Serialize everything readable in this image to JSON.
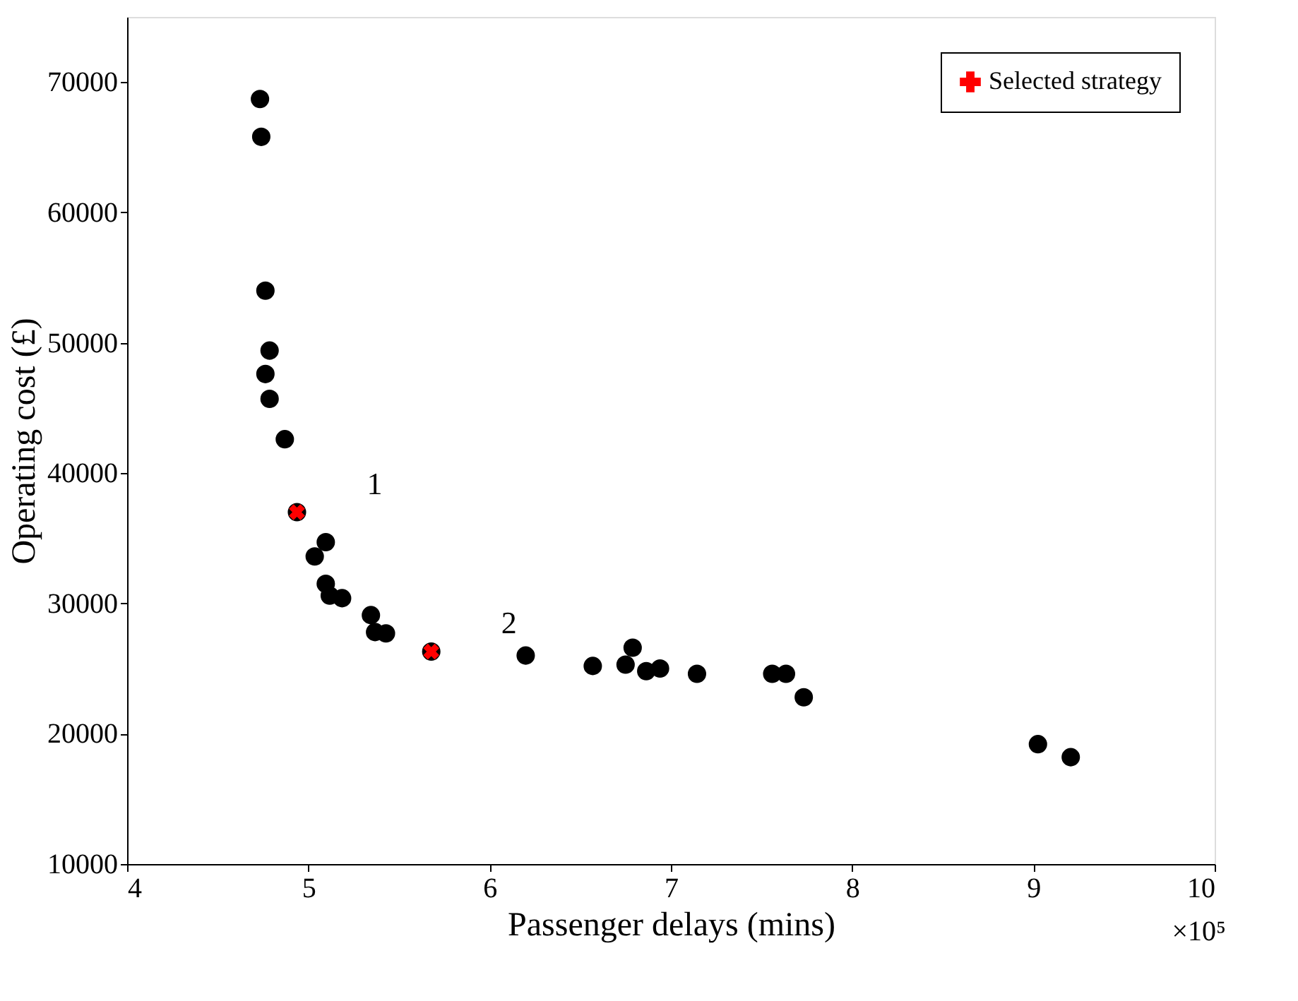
{
  "chart_data": {
    "type": "scatter",
    "xlabel": "Passenger delays (mins)",
    "ylabel": "Operating cost (£)",
    "xlim": [
      4,
      10
    ],
    "xticks": [
      4,
      5,
      6,
      7,
      8,
      9,
      10
    ],
    "ylim": [
      10000,
      75000
    ],
    "yticks": [
      10000,
      20000,
      30000,
      40000,
      50000,
      60000,
      70000
    ],
    "grid": false,
    "legend": "top right",
    "series": [
      {
        "color": "#000000",
        "marker": "circle",
        "x": [
          4.733,
          4.74,
          4.763,
          4.786,
          4.763,
          4.786,
          4.87,
          4.937,
          5.096,
          5.035,
          5.096,
          5.118,
          5.186,
          5.345,
          5.368,
          5.428,
          5.678,
          6.199,
          6.569,
          6.75,
          6.789,
          6.864,
          6.94,
          7.144,
          7.559,
          7.635,
          7.733,
          9.025,
          9.206
        ],
        "values": [
          68700,
          65800,
          54000,
          49400,
          47600,
          45700,
          42600,
          37000,
          34700,
          33600,
          31500,
          30600,
          30400,
          29100,
          27800,
          27700,
          26300,
          26000,
          25200,
          25300,
          26600,
          24800,
          25000,
          24600,
          24600,
          24600,
          22800,
          19200,
          18200
        ]
      },
      {
        "name": "Selected strategy",
        "color": "#ff0000",
        "marker": "cross",
        "x": [
          4.937,
          5.678
        ],
        "values": [
          37000,
          26300
        ]
      }
    ],
    "annotations": [
      {
        "text": "1",
        "x": 4.937,
        "y": 37000
      },
      {
        "text": "2",
        "x": 5.678,
        "y": 26300
      },
      "×10⁵"
    ]
  }
}
